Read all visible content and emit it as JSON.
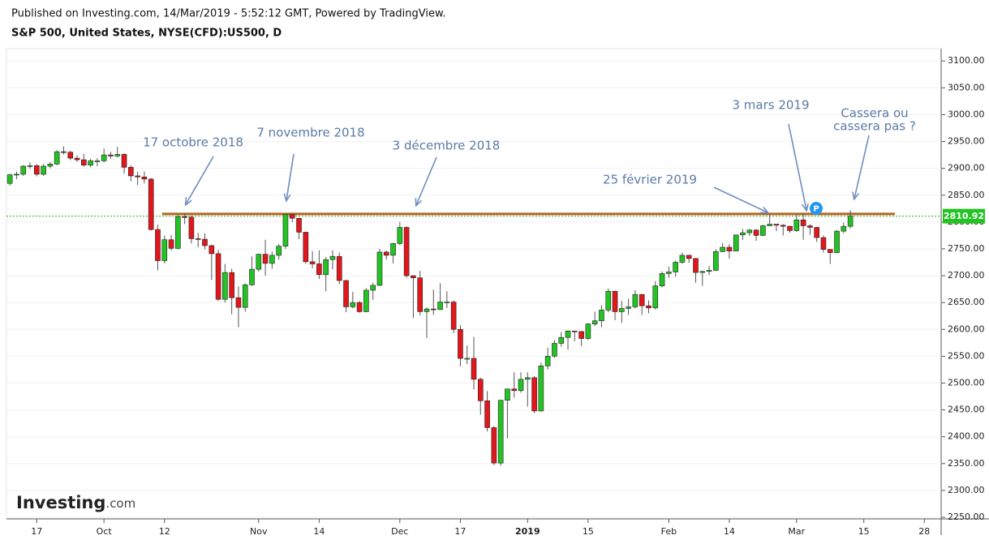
{
  "header": "Published on Investing.com, 14/Mar/2019 - 5:52:12 GMT, Powered by TradingView.",
  "chart_data": {
    "type": "candlestick",
    "title": "S&P 500, United States, NYSE(CFD):US500, D",
    "categories": [
      null,
      null,
      null,
      null,
      "17",
      null,
      null,
      null,
      null,
      null,
      null,
      null,
      null,
      null,
      "Oct",
      null,
      null,
      null,
      null,
      null,
      null,
      null,
      null,
      "12",
      null,
      null,
      null,
      null,
      null,
      null,
      null,
      null,
      null,
      null,
      null,
      null,
      null,
      "Nov",
      null,
      null,
      null,
      null,
      null,
      null,
      null,
      null,
      "14",
      null,
      null,
      null,
      null,
      null,
      null,
      null,
      null,
      null,
      null,
      null,
      "Dec",
      null,
      null,
      null,
      null,
      null,
      null,
      null,
      null,
      "17",
      null,
      null,
      null,
      null,
      null,
      null,
      null,
      null,
      null,
      "2019",
      null,
      null,
      null,
      null,
      null,
      null,
      null,
      null,
      "15",
      null,
      null,
      null,
      null,
      null,
      null,
      null,
      null,
      null,
      null,
      null,
      "Feb",
      null,
      null,
      null,
      null,
      null,
      null,
      null,
      null,
      "14",
      null,
      null,
      null,
      null,
      null,
      null,
      null,
      null,
      null,
      "Mar",
      null,
      null,
      null,
      null,
      null,
      null,
      null,
      null,
      null,
      "15",
      null,
      null,
      null,
      null,
      null,
      null,
      null,
      null,
      "28",
      null,
      null
    ],
    "open": [
      2872,
      2888,
      2889,
      2904,
      2905,
      2889,
      2904,
      2908,
      2931,
      2930,
      2919,
      2916,
      2906,
      2914,
      2914,
      2925,
      2923,
      2926,
      2902,
      2886,
      2884,
      2880,
      2786,
      2728,
      2767,
      2751,
      2810,
      2809,
      2769,
      2768,
      2756,
      2741,
      2656,
      2706,
      2659,
      2641,
      2683,
      2712,
      2740,
      2723,
      2738,
      2755,
      2814,
      2807,
      2781,
      2726,
      2722,
      2702,
      2730,
      2736,
      2691,
      2642,
      2650,
      2633,
      2673,
      2682,
      2744,
      2738,
      2760,
      2790,
      2700,
      2696,
      2633,
      2638,
      2637,
      2651,
      2651,
      2600,
      2546,
      2546,
      2507,
      2467,
      2417,
      2351,
      2468,
      2489,
      2486,
      2507,
      2510,
      2448,
      2532,
      2550,
      2574,
      2585,
      2597,
      2596,
      2583,
      2610,
      2616,
      2636,
      2671,
      2633,
      2639,
      2642,
      2665,
      2644,
      2640,
      2681,
      2704,
      2707,
      2725,
      2738,
      2732,
      2706,
      2708,
      2710,
      2745,
      2753,
      2746,
      2776,
      2780,
      2785,
      2775,
      2793,
      2796,
      2794,
      2792,
      2784,
      2804,
      2793,
      2790,
      2771,
      2749,
      2743,
      2783,
      2792,
      null,
      null,
      null,
      null,
      null,
      null,
      null,
      null,
      null,
      null,
      null,
      null,
      null
    ],
    "high": [
      2890,
      2894,
      2906,
      2911,
      2908,
      2908,
      2912,
      2934,
      2941,
      2933,
      2924,
      2927,
      2918,
      2919,
      2937,
      2931,
      2940,
      2928,
      2906,
      2894,
      2894,
      2882,
      2795,
      2775,
      2776,
      2813,
      2816,
      2812,
      2780,
      2779,
      2758,
      2748,
      2722,
      2713,
      2680,
      2686,
      2736,
      2741,
      2767,
      2745,
      2759,
      2815,
      2816,
      2808,
      2782,
      2746,
      2747,
      2735,
      2747,
      2743,
      2692,
      2670,
      2653,
      2677,
      2687,
      2750,
      2747,
      2761,
      2800,
      2792,
      2701,
      2709,
      2641,
      2674,
      2686,
      2671,
      2654,
      2608,
      2570,
      2586,
      2510,
      2485,
      2420,
      2468,
      2489,
      2520,
      2520,
      2520,
      2513,
      2538,
      2566,
      2580,
      2595,
      2598,
      2597,
      2597,
      2612,
      2633,
      2645,
      2676,
      2672,
      2653,
      2657,
      2673,
      2666,
      2654,
      2690,
      2708,
      2717,
      2728,
      2743,
      2739,
      2733,
      2709,
      2718,
      2749,
      2761,
      2759,
      2776,
      2787,
      2787,
      2787,
      2795,
      2814,
      2796,
      2796,
      2793,
      2813,
      2816,
      2796,
      2791,
      2775,
      2749,
      2785,
      2799,
      2822,
      null,
      null,
      null,
      null,
      null,
      null,
      null,
      null,
      null,
      null,
      null,
      null,
      null
    ],
    "low": [
      2868,
      2880,
      2886,
      2899,
      2885,
      2886,
      2900,
      2906,
      2926,
      2915,
      2912,
      2903,
      2902,
      2904,
      2911,
      2918,
      2920,
      2890,
      2876,
      2869,
      2872,
      2784,
      2710,
      2723,
      2747,
      2749,
      2796,
      2760,
      2753,
      2749,
      2692,
      2653,
      2650,
      2628,
      2604,
      2633,
      2681,
      2708,
      2700,
      2713,
      2730,
      2750,
      2800,
      2768,
      2722,
      2714,
      2694,
      2671,
      2712,
      2684,
      2632,
      2639,
      2631,
      2632,
      2655,
      2681,
      2730,
      2723,
      2757,
      2696,
      2621,
      2626,
      2584,
      2627,
      2636,
      2640,
      2593,
      2531,
      2535,
      2488,
      2441,
      2410,
      2347,
      2346,
      2397,
      2473,
      2482,
      2456,
      2444,
      2447,
      2525,
      2547,
      2568,
      2562,
      2578,
      2569,
      2580,
      2606,
      2604,
      2632,
      2617,
      2612,
      2627,
      2639,
      2627,
      2630,
      2637,
      2678,
      2696,
      2698,
      2722,
      2724,
      2687,
      2681,
      2701,
      2709,
      2744,
      2732,
      2746,
      2767,
      2774,
      2765,
      2774,
      2794,
      2783,
      2775,
      2780,
      2782,
      2767,
      2776,
      2763,
      2743,
      2722,
      2743,
      2779,
      2788,
      null,
      null,
      null,
      null,
      null,
      null,
      null,
      null,
      null,
      null,
      null,
      null,
      null
    ],
    "close": [
      2888,
      2889,
      2904,
      2905,
      2889,
      2904,
      2908,
      2931,
      2930,
      2919,
      2916,
      2906,
      2914,
      2914,
      2925,
      2923,
      2926,
      2902,
      2886,
      2884,
      2880,
      2786,
      2728,
      2767,
      2751,
      2810,
      2809,
      2769,
      2768,
      2756,
      2741,
      2656,
      2706,
      2659,
      2641,
      2683,
      2712,
      2740,
      2723,
      2738,
      2755,
      2814,
      2807,
      2781,
      2726,
      2722,
      2702,
      2730,
      2736,
      2691,
      2642,
      2650,
      2633,
      2673,
      2682,
      2744,
      2738,
      2760,
      2790,
      2700,
      2696,
      2633,
      2638,
      2637,
      2651,
      2651,
      2600,
      2546,
      2546,
      2507,
      2467,
      2417,
      2351,
      2468,
      2489,
      2486,
      2507,
      2510,
      2448,
      2532,
      2550,
      2574,
      2585,
      2597,
      2596,
      2583,
      2610,
      2616,
      2636,
      2671,
      2633,
      2639,
      2642,
      2665,
      2644,
      2640,
      2681,
      2704,
      2707,
      2725,
      2738,
      2732,
      2706,
      2708,
      2710,
      2745,
      2753,
      2746,
      2776,
      2780,
      2785,
      2775,
      2793,
      2796,
      2794,
      2792,
      2784,
      2804,
      2793,
      2790,
      2771,
      2749,
      2743,
      2783,
      2792,
      2810.92,
      null,
      null,
      null,
      null,
      null,
      null,
      null,
      null,
      null,
      null,
      null,
      null,
      null
    ],
    "up_color": "#22c322",
    "down_color": "#e3161c",
    "ylim": [
      2247,
      3123
    ],
    "yticks": [
      {
        "value": 2250,
        "label": "2250.00"
      },
      {
        "value": 2300,
        "label": "2300.00"
      },
      {
        "value": 2350,
        "label": "2350.00"
      },
      {
        "value": 2400,
        "label": "2400.00"
      },
      {
        "value": 2450,
        "label": "2450.00"
      },
      {
        "value": 2500,
        "label": "2500.00"
      },
      {
        "value": 2550,
        "label": "2550.00"
      },
      {
        "value": 2600,
        "label": "2600.00"
      },
      {
        "value": 2650,
        "label": "2650.00"
      },
      {
        "value": 2700,
        "label": "2700.00"
      },
      {
        "value": 2750,
        "label": "2750.00"
      },
      {
        "value": 2800,
        "label": "2800.00"
      },
      {
        "value": 2850,
        "label": "2850.00"
      },
      {
        "value": 2900,
        "label": "2900.00"
      },
      {
        "value": 2950,
        "label": "2950.00"
      },
      {
        "value": 3000,
        "label": "3000.00"
      },
      {
        "value": 3050,
        "label": "3050.00"
      },
      {
        "value": 3100,
        "label": "3100.00"
      }
    ],
    "grid": true,
    "resistance_level": 2815,
    "resistance_color": "#b5651d",
    "marker_label": "P",
    "annotations": [
      [
        "17 octobre 2018"
      ],
      [
        "7 novembre 2018"
      ],
      [
        "3 décembre 2018"
      ],
      [
        "25 février 2019"
      ],
      [
        "3 mars 2019"
      ],
      [
        "Cassera ou",
        "cassera pas ?"
      ]
    ]
  },
  "logo": [
    "Investing",
    ".com"
  ]
}
